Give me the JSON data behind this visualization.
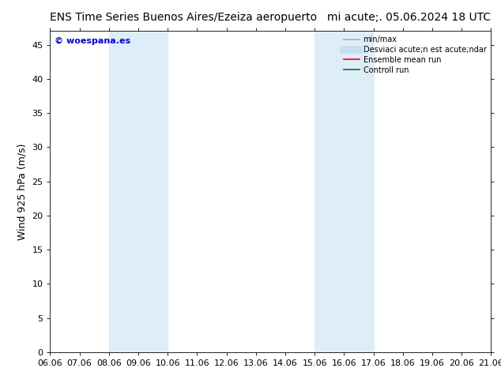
{
  "title_left": "ENS Time Series Buenos Aires/Ezeiza aeropuerto",
  "title_right": "mi acute;. 05.06.2024 18 UTC",
  "ylabel": "Wind 925 hPa (m/s)",
  "bg_color": "#ffffff",
  "plot_bg_color": "#ffffff",
  "ylim": [
    0,
    47
  ],
  "yticks": [
    0,
    5,
    10,
    15,
    20,
    25,
    30,
    35,
    40,
    45
  ],
  "xtick_labels": [
    "06.06",
    "07.06",
    "08.06",
    "09.06",
    "10.06",
    "11.06",
    "12.06",
    "13.06",
    "14.06",
    "15.06",
    "16.06",
    "17.06",
    "18.06",
    "19.06",
    "20.06",
    "21.06"
  ],
  "shaded_band_indices": [
    {
      "xmin": 2,
      "xmax": 4
    },
    {
      "xmin": 9,
      "xmax": 11
    }
  ],
  "shaded_color": "#ddeef8",
  "watermark_text": "© woespana.es",
  "watermark_color": "#0000cc",
  "legend_entries": [
    {
      "label": "min/max",
      "color": "#aaaaaa",
      "lw": 1.2,
      "style": "solid"
    },
    {
      "label": "Desviaci acute;n est acute;ndar",
      "color": "#c8dff0",
      "lw": 7,
      "style": "solid"
    },
    {
      "label": "Ensemble mean run",
      "color": "#ff0000",
      "lw": 1.2,
      "style": "solid"
    },
    {
      "label": "Controll run",
      "color": "#008000",
      "lw": 1.2,
      "style": "solid"
    }
  ],
  "title_fontsize": 10,
  "ylabel_fontsize": 9,
  "tick_fontsize": 8,
  "legend_fontsize": 7,
  "watermark_fontsize": 8
}
